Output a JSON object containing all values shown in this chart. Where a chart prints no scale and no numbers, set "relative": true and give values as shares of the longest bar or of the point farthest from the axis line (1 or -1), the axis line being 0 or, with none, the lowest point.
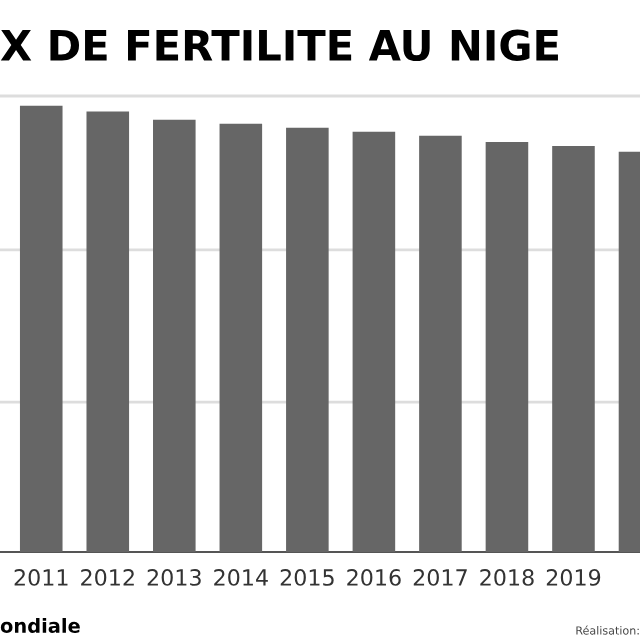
{
  "chart_data": {
    "type": "bar",
    "title": "X DE FERTILITE AU NIGE",
    "relative": true,
    "categories": [
      "2011",
      "2012",
      "2013",
      "2014",
      "2015",
      "2016",
      "2017",
      "2018",
      "2019",
      null
    ],
    "values": [
      1,
      0.987,
      0.969,
      0.96,
      0.951,
      0.942,
      0.933,
      0.919,
      0.91,
      0.897
    ],
    "color": "#666666",
    "ref_lines": [
      {
        "axis": "y",
        "value": 0.336,
        "color": "#dddddd"
      },
      {
        "axis": "y",
        "value": 0.677,
        "color": "#dddddd"
      },
      {
        "axis": "y",
        "value": 1.022,
        "color": "#dddddd"
      }
    ],
    "annotations": [
      "ondiale",
      "Réalisation:"
    ]
  }
}
